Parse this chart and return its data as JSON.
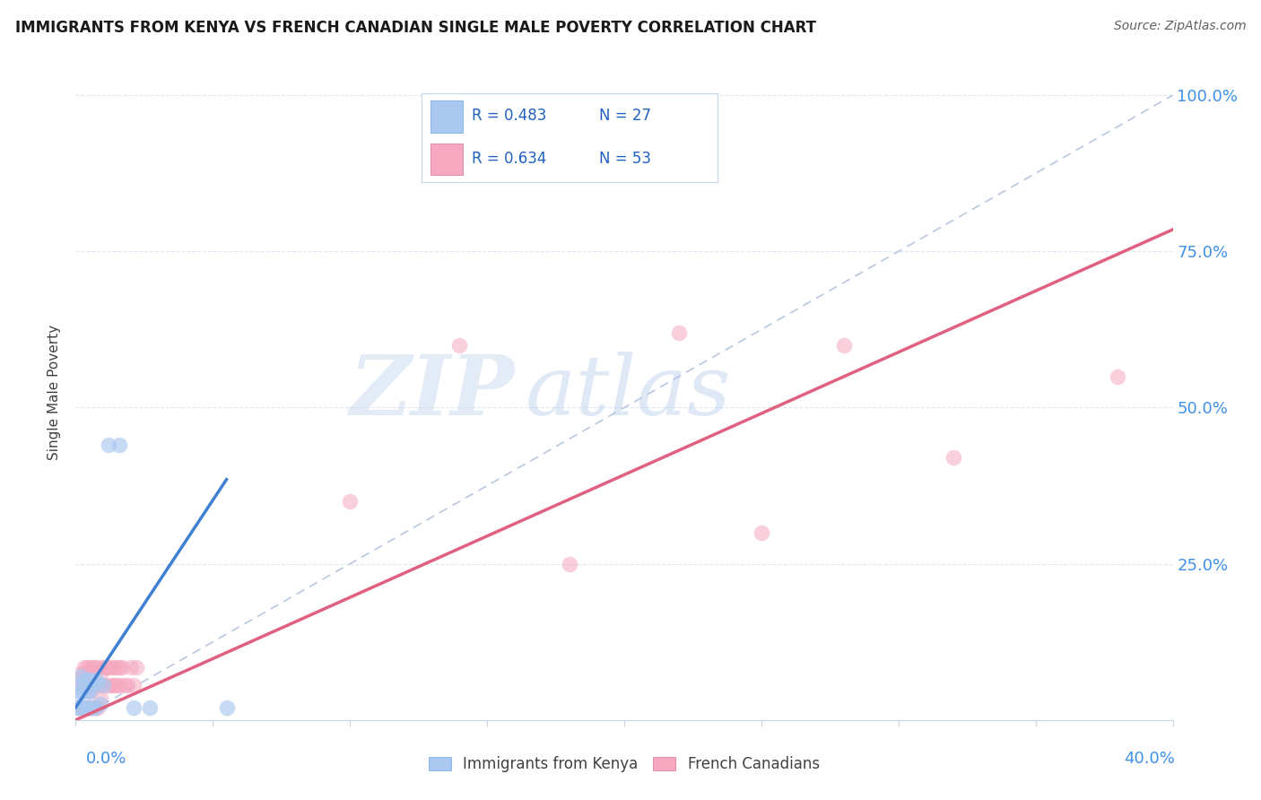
{
  "title": "IMMIGRANTS FROM KENYA VS FRENCH CANADIAN SINGLE MALE POVERTY CORRELATION CHART",
  "source": "Source: ZipAtlas.com",
  "ylabel": "Single Male Poverty",
  "legend_label_blue": "Immigrants from Kenya",
  "legend_label_pink": "French Canadians",
  "blue_color": "#aac8f0",
  "pink_color": "#f5a8c0",
  "blue_line_color": "#4080d0",
  "pink_line_color": "#e06080",
  "dashed_line_color": "#b8c8e0",
  "legend_r_color": "#2060c0",
  "legend_n_color": "#2060c0",
  "right_tick_color": "#4090e8",
  "grid_color": "#dde8f5",
  "spine_color": "#c8d4e8",
  "blue_r": "R = 0.483",
  "blue_n": "N = 27",
  "pink_r": "R = 0.634",
  "pink_n": "N = 53",
  "xmin": 0.0,
  "xmax": 0.4,
  "ymin": 0.0,
  "ymax": 1.05,
  "blue_line_x0": 0.0,
  "blue_line_x1": 0.055,
  "blue_line_y0": 0.02,
  "blue_line_y1": 0.385,
  "pink_line_x0": 0.0,
  "pink_line_x1": 0.4,
  "pink_line_y0": 0.0,
  "pink_line_y1": 0.785,
  "dash_line_x0": 0.0,
  "dash_line_x1": 0.4,
  "dash_line_y0": 0.0,
  "dash_line_y1": 1.0,
  "blue_points_x": [
    0.001,
    0.001,
    0.001,
    0.002,
    0.002,
    0.002,
    0.003,
    0.003,
    0.003,
    0.004,
    0.004,
    0.004,
    0.005,
    0.005,
    0.005,
    0.006,
    0.006,
    0.007,
    0.007,
    0.008,
    0.009,
    0.01,
    0.012,
    0.016,
    0.021,
    0.027,
    0.055
  ],
  "blue_points_y": [
    0.055,
    0.04,
    0.02,
    0.07,
    0.045,
    0.02,
    0.065,
    0.05,
    0.02,
    0.065,
    0.045,
    0.02,
    0.065,
    0.045,
    0.02,
    0.055,
    0.02,
    0.065,
    0.02,
    0.06,
    0.025,
    0.055,
    0.44,
    0.44,
    0.02,
    0.02,
    0.02
  ],
  "pink_points_x": [
    0.001,
    0.001,
    0.002,
    0.002,
    0.002,
    0.003,
    0.003,
    0.003,
    0.004,
    0.004,
    0.004,
    0.005,
    0.005,
    0.005,
    0.005,
    0.006,
    0.006,
    0.006,
    0.007,
    0.007,
    0.007,
    0.008,
    0.008,
    0.008,
    0.009,
    0.009,
    0.01,
    0.01,
    0.011,
    0.012,
    0.012,
    0.013,
    0.013,
    0.014,
    0.014,
    0.015,
    0.015,
    0.016,
    0.016,
    0.017,
    0.018,
    0.019,
    0.02,
    0.021,
    0.022,
    0.1,
    0.14,
    0.18,
    0.22,
    0.25,
    0.28,
    0.32,
    0.38
  ],
  "pink_points_y": [
    0.065,
    0.02,
    0.075,
    0.055,
    0.02,
    0.085,
    0.06,
    0.02,
    0.085,
    0.055,
    0.02,
    0.085,
    0.065,
    0.045,
    0.02,
    0.085,
    0.055,
    0.02,
    0.085,
    0.055,
    0.02,
    0.085,
    0.055,
    0.02,
    0.075,
    0.035,
    0.085,
    0.055,
    0.085,
    0.085,
    0.055,
    0.085,
    0.055,
    0.085,
    0.055,
    0.085,
    0.055,
    0.085,
    0.055,
    0.085,
    0.055,
    0.055,
    0.085,
    0.055,
    0.085,
    0.35,
    0.6,
    0.25,
    0.62,
    0.3,
    0.6,
    0.42,
    0.55
  ]
}
